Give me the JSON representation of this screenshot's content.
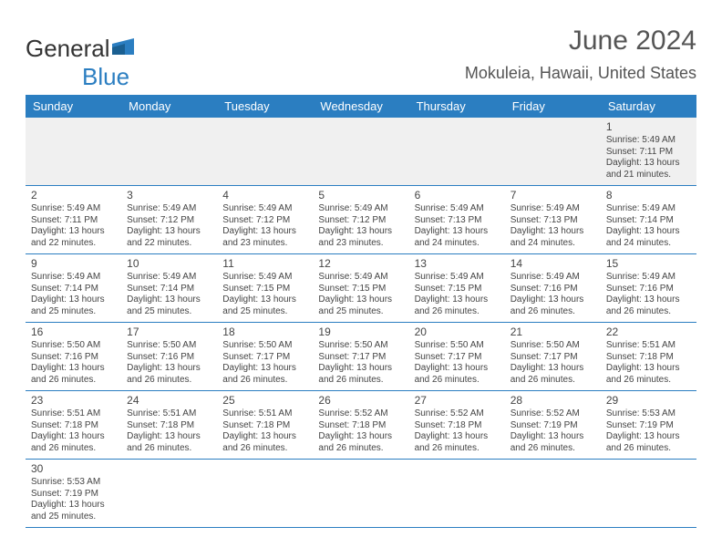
{
  "brand": {
    "part1": "General",
    "part2": "Blue",
    "shape_color": "#2b7ec1"
  },
  "title": "June 2024",
  "location": "Mokuleia, Hawaii, United States",
  "colors": {
    "header_bg": "#2b7ec1",
    "header_fg": "#ffffff",
    "row_border": "#2b7ec1",
    "first_row_bg": "#f0f0f0",
    "text": "#444444"
  },
  "day_labels": [
    "Sunday",
    "Monday",
    "Tuesday",
    "Wednesday",
    "Thursday",
    "Friday",
    "Saturday"
  ],
  "weeks": [
    [
      null,
      null,
      null,
      null,
      null,
      null,
      {
        "n": "1",
        "sr": "Sunrise: 5:49 AM",
        "ss": "Sunset: 7:11 PM",
        "dl": "Daylight: 13 hours and 21 minutes."
      }
    ],
    [
      {
        "n": "2",
        "sr": "Sunrise: 5:49 AM",
        "ss": "Sunset: 7:11 PM",
        "dl": "Daylight: 13 hours and 22 minutes."
      },
      {
        "n": "3",
        "sr": "Sunrise: 5:49 AM",
        "ss": "Sunset: 7:12 PM",
        "dl": "Daylight: 13 hours and 22 minutes."
      },
      {
        "n": "4",
        "sr": "Sunrise: 5:49 AM",
        "ss": "Sunset: 7:12 PM",
        "dl": "Daylight: 13 hours and 23 minutes."
      },
      {
        "n": "5",
        "sr": "Sunrise: 5:49 AM",
        "ss": "Sunset: 7:12 PM",
        "dl": "Daylight: 13 hours and 23 minutes."
      },
      {
        "n": "6",
        "sr": "Sunrise: 5:49 AM",
        "ss": "Sunset: 7:13 PM",
        "dl": "Daylight: 13 hours and 24 minutes."
      },
      {
        "n": "7",
        "sr": "Sunrise: 5:49 AM",
        "ss": "Sunset: 7:13 PM",
        "dl": "Daylight: 13 hours and 24 minutes."
      },
      {
        "n": "8",
        "sr": "Sunrise: 5:49 AM",
        "ss": "Sunset: 7:14 PM",
        "dl": "Daylight: 13 hours and 24 minutes."
      }
    ],
    [
      {
        "n": "9",
        "sr": "Sunrise: 5:49 AM",
        "ss": "Sunset: 7:14 PM",
        "dl": "Daylight: 13 hours and 25 minutes."
      },
      {
        "n": "10",
        "sr": "Sunrise: 5:49 AM",
        "ss": "Sunset: 7:14 PM",
        "dl": "Daylight: 13 hours and 25 minutes."
      },
      {
        "n": "11",
        "sr": "Sunrise: 5:49 AM",
        "ss": "Sunset: 7:15 PM",
        "dl": "Daylight: 13 hours and 25 minutes."
      },
      {
        "n": "12",
        "sr": "Sunrise: 5:49 AM",
        "ss": "Sunset: 7:15 PM",
        "dl": "Daylight: 13 hours and 25 minutes."
      },
      {
        "n": "13",
        "sr": "Sunrise: 5:49 AM",
        "ss": "Sunset: 7:15 PM",
        "dl": "Daylight: 13 hours and 26 minutes."
      },
      {
        "n": "14",
        "sr": "Sunrise: 5:49 AM",
        "ss": "Sunset: 7:16 PM",
        "dl": "Daylight: 13 hours and 26 minutes."
      },
      {
        "n": "15",
        "sr": "Sunrise: 5:49 AM",
        "ss": "Sunset: 7:16 PM",
        "dl": "Daylight: 13 hours and 26 minutes."
      }
    ],
    [
      {
        "n": "16",
        "sr": "Sunrise: 5:50 AM",
        "ss": "Sunset: 7:16 PM",
        "dl": "Daylight: 13 hours and 26 minutes."
      },
      {
        "n": "17",
        "sr": "Sunrise: 5:50 AM",
        "ss": "Sunset: 7:16 PM",
        "dl": "Daylight: 13 hours and 26 minutes."
      },
      {
        "n": "18",
        "sr": "Sunrise: 5:50 AM",
        "ss": "Sunset: 7:17 PM",
        "dl": "Daylight: 13 hours and 26 minutes."
      },
      {
        "n": "19",
        "sr": "Sunrise: 5:50 AM",
        "ss": "Sunset: 7:17 PM",
        "dl": "Daylight: 13 hours and 26 minutes."
      },
      {
        "n": "20",
        "sr": "Sunrise: 5:50 AM",
        "ss": "Sunset: 7:17 PM",
        "dl": "Daylight: 13 hours and 26 minutes."
      },
      {
        "n": "21",
        "sr": "Sunrise: 5:50 AM",
        "ss": "Sunset: 7:17 PM",
        "dl": "Daylight: 13 hours and 26 minutes."
      },
      {
        "n": "22",
        "sr": "Sunrise: 5:51 AM",
        "ss": "Sunset: 7:18 PM",
        "dl": "Daylight: 13 hours and 26 minutes."
      }
    ],
    [
      {
        "n": "23",
        "sr": "Sunrise: 5:51 AM",
        "ss": "Sunset: 7:18 PM",
        "dl": "Daylight: 13 hours and 26 minutes."
      },
      {
        "n": "24",
        "sr": "Sunrise: 5:51 AM",
        "ss": "Sunset: 7:18 PM",
        "dl": "Daylight: 13 hours and 26 minutes."
      },
      {
        "n": "25",
        "sr": "Sunrise: 5:51 AM",
        "ss": "Sunset: 7:18 PM",
        "dl": "Daylight: 13 hours and 26 minutes."
      },
      {
        "n": "26",
        "sr": "Sunrise: 5:52 AM",
        "ss": "Sunset: 7:18 PM",
        "dl": "Daylight: 13 hours and 26 minutes."
      },
      {
        "n": "27",
        "sr": "Sunrise: 5:52 AM",
        "ss": "Sunset: 7:18 PM",
        "dl": "Daylight: 13 hours and 26 minutes."
      },
      {
        "n": "28",
        "sr": "Sunrise: 5:52 AM",
        "ss": "Sunset: 7:19 PM",
        "dl": "Daylight: 13 hours and 26 minutes."
      },
      {
        "n": "29",
        "sr": "Sunrise: 5:53 AM",
        "ss": "Sunset: 7:19 PM",
        "dl": "Daylight: 13 hours and 26 minutes."
      }
    ],
    [
      {
        "n": "30",
        "sr": "Sunrise: 5:53 AM",
        "ss": "Sunset: 7:19 PM",
        "dl": "Daylight: 13 hours and 25 minutes."
      },
      null,
      null,
      null,
      null,
      null,
      null
    ]
  ]
}
